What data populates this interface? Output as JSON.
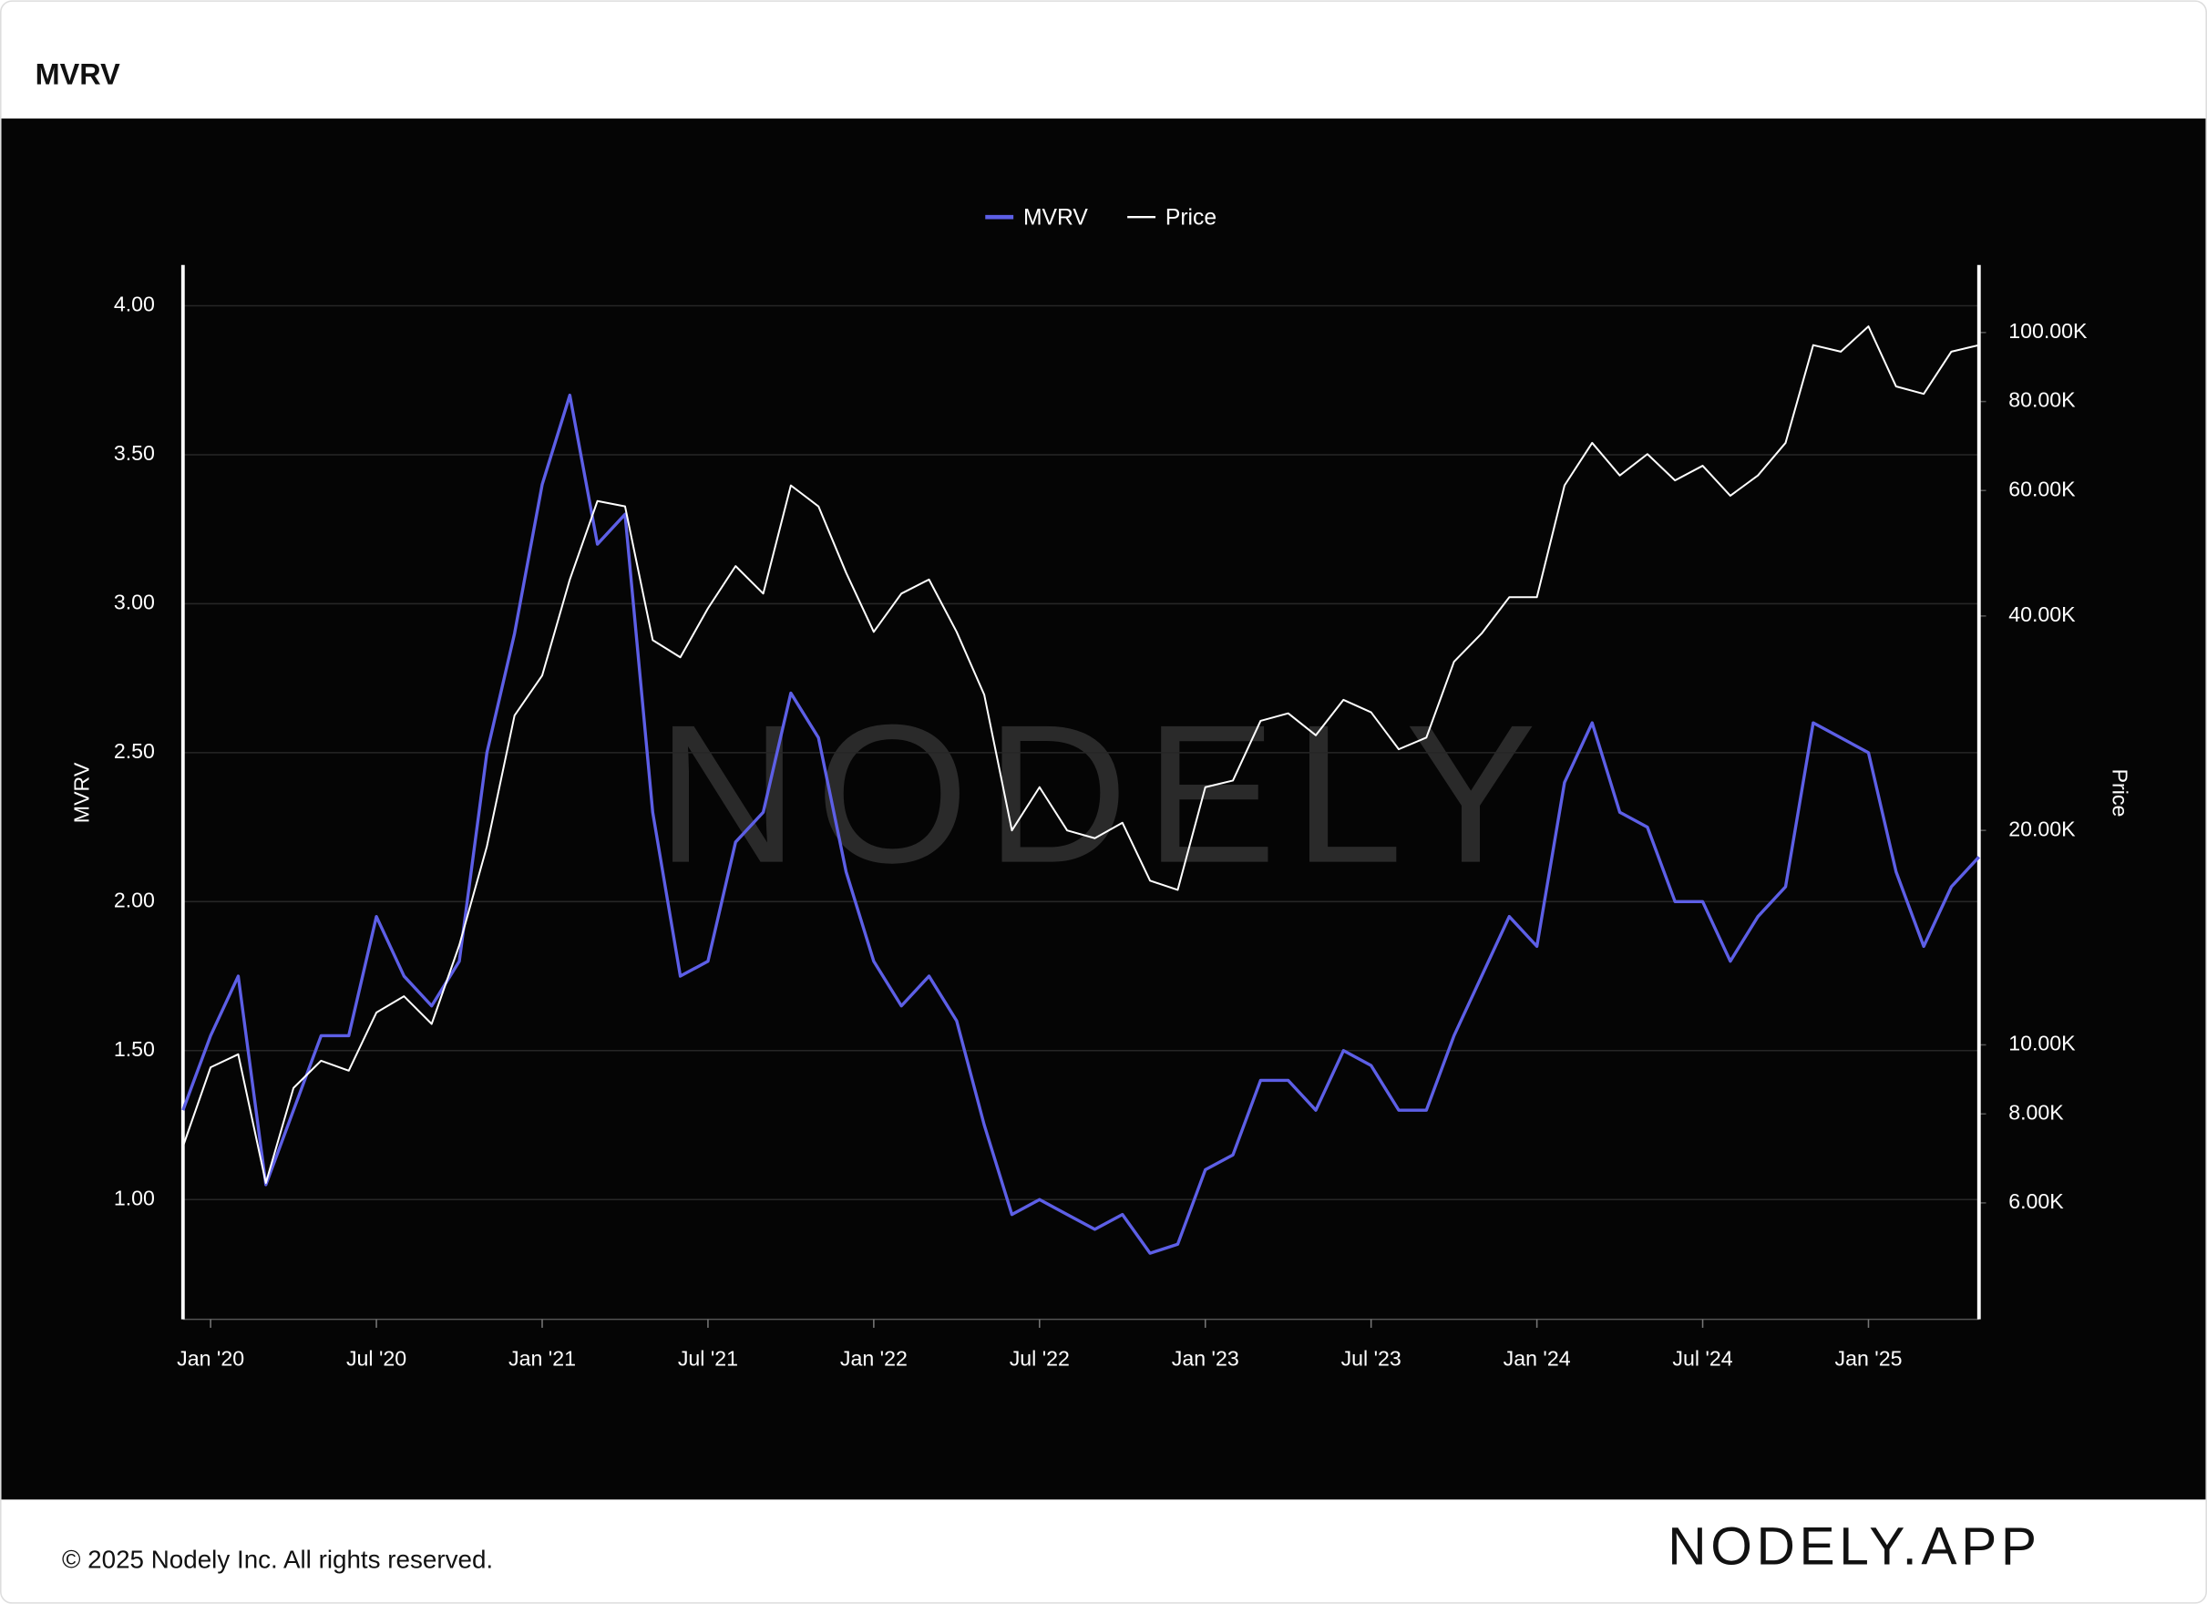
{
  "header": {
    "title": "MVRV"
  },
  "footer": {
    "copyright": "© 2025 Nodely Inc. All rights reserved.",
    "brand": "NODELY.APP"
  },
  "chart_data": {
    "type": "line",
    "watermark": "NODELY",
    "ylabel": "MVRV",
    "y2label": "Price",
    "x": [
      "2019-12",
      "2020-01",
      "2020-02",
      "2020-03",
      "2020-04",
      "2020-05",
      "2020-06",
      "2020-07",
      "2020-08",
      "2020-09",
      "2020-10",
      "2020-11",
      "2020-12",
      "2021-01",
      "2021-02",
      "2021-03",
      "2021-04",
      "2021-05",
      "2021-06",
      "2021-07",
      "2021-08",
      "2021-09",
      "2021-10",
      "2021-11",
      "2021-12",
      "2022-01",
      "2022-02",
      "2022-03",
      "2022-04",
      "2022-05",
      "2022-06",
      "2022-07",
      "2022-08",
      "2022-09",
      "2022-10",
      "2022-11",
      "2022-12",
      "2023-01",
      "2023-02",
      "2023-03",
      "2023-04",
      "2023-05",
      "2023-06",
      "2023-07",
      "2023-08",
      "2023-09",
      "2023-10",
      "2023-11",
      "2023-12",
      "2024-01",
      "2024-02",
      "2024-03",
      "2024-04",
      "2024-05",
      "2024-06",
      "2024-07",
      "2024-08",
      "2024-09",
      "2024-10",
      "2024-11",
      "2024-12",
      "2025-01",
      "2025-02",
      "2025-03",
      "2025-04",
      "2025-05"
    ],
    "series": [
      {
        "name": "MVRV",
        "color": "#5d5fe6",
        "axis": "y",
        "values": [
          1.3,
          1.55,
          1.75,
          1.05,
          1.3,
          1.55,
          1.55,
          1.95,
          1.75,
          1.65,
          1.8,
          2.5,
          2.9,
          3.4,
          3.7,
          3.2,
          3.3,
          2.3,
          1.75,
          1.8,
          2.2,
          2.3,
          2.7,
          2.55,
          2.1,
          1.8,
          1.65,
          1.75,
          1.6,
          1.25,
          0.95,
          1.0,
          0.95,
          0.9,
          0.95,
          0.82,
          0.85,
          1.1,
          1.15,
          1.4,
          1.4,
          1.3,
          1.5,
          1.45,
          1.3,
          1.3,
          1.55,
          1.75,
          1.95,
          1.85,
          2.4,
          2.6,
          2.3,
          2.25,
          2.0,
          2.0,
          1.8,
          1.95,
          2.05,
          2.6,
          2.55,
          2.5,
          2.1,
          1.85,
          2.05,
          2.15
        ]
      },
      {
        "name": "Price",
        "color": "#ffffff",
        "axis": "y2",
        "values": [
          7200,
          9300,
          9700,
          6400,
          8700,
          9500,
          9200,
          11100,
          11700,
          10700,
          13800,
          19000,
          29000,
          33000,
          45000,
          58000,
          57000,
          37000,
          35000,
          41000,
          47000,
          43000,
          61000,
          57000,
          46000,
          38000,
          43000,
          45000,
          38000,
          31000,
          20000,
          23000,
          20000,
          19500,
          20500,
          17000,
          16500,
          23000,
          23500,
          28500,
          29200,
          27200,
          30500,
          29300,
          26000,
          27000,
          34500,
          37800,
          42500,
          42500,
          61000,
          70000,
          63000,
          67500,
          62000,
          65000,
          59000,
          63000,
          70000,
          96000,
          94000,
          102000,
          84000,
          82000,
          94000,
          96000
        ]
      }
    ],
    "xlim": [
      "2019-12",
      "2025-05"
    ],
    "xticks": [
      {
        "value": "2020-01",
        "label": "Jan '20"
      },
      {
        "value": "2020-07",
        "label": "Jul '20"
      },
      {
        "value": "2021-01",
        "label": "Jan '21"
      },
      {
        "value": "2021-07",
        "label": "Jul '21"
      },
      {
        "value": "2022-01",
        "label": "Jan '22"
      },
      {
        "value": "2022-07",
        "label": "Jul '22"
      },
      {
        "value": "2023-01",
        "label": "Jan '23"
      },
      {
        "value": "2023-07",
        "label": "Jul '23"
      },
      {
        "value": "2024-01",
        "label": "Jan '24"
      },
      {
        "value": "2024-07",
        "label": "Jul '24"
      },
      {
        "value": "2025-01",
        "label": "Jan '25"
      }
    ],
    "ylim": [
      0.598,
      4.137
    ],
    "yticks": [
      {
        "value": 1,
        "label": "1.00"
      },
      {
        "value": 1.5,
        "label": "1.50"
      },
      {
        "value": 2,
        "label": "2.00"
      },
      {
        "value": 2.5,
        "label": "2.50"
      },
      {
        "value": 3,
        "label": "3.00"
      },
      {
        "value": 3.5,
        "label": "3.50"
      },
      {
        "value": 4,
        "label": "4.00"
      }
    ],
    "y2lim": [
      4118,
      124400
    ],
    "y2log": true,
    "y2ticks": [
      {
        "value": 6000,
        "label": "6.00K"
      },
      {
        "value": 8000,
        "label": "8.00K"
      },
      {
        "value": 10000,
        "label": "10.00K"
      },
      {
        "value": 20000,
        "label": "20.00K"
      },
      {
        "value": 40000,
        "label": "40.00K"
      },
      {
        "value": 60000,
        "label": "60.00K"
      },
      {
        "value": 80000,
        "label": "80.00K"
      },
      {
        "value": 100000,
        "label": "100.00K"
      }
    ],
    "grid": true,
    "legend": "top"
  }
}
